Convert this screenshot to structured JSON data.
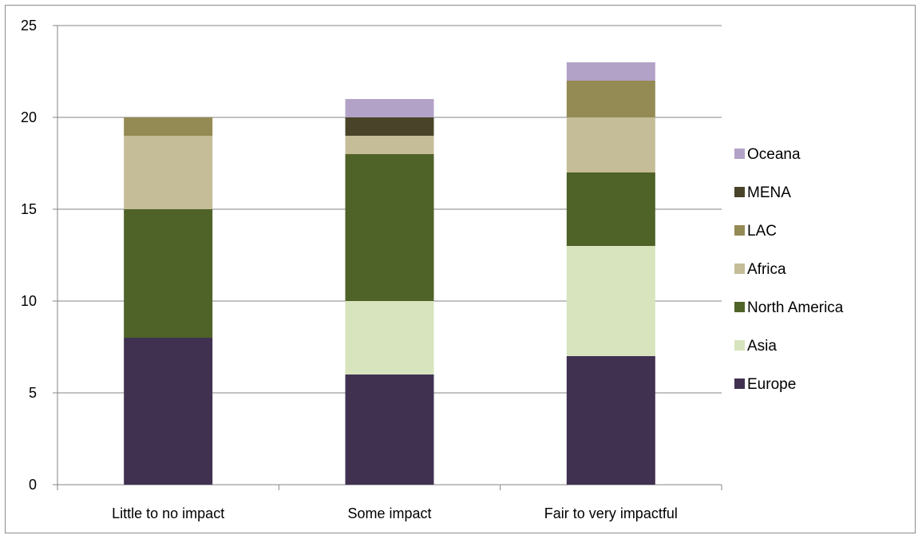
{
  "chart_data": {
    "type": "bar",
    "stacked": true,
    "title": "",
    "xlabel": "",
    "ylabel": "",
    "categories": [
      "Little to no impact",
      "Some impact",
      "Fair to very impactful"
    ],
    "ylim": [
      0,
      25
    ],
    "yticks": [
      0,
      5,
      10,
      15,
      20,
      25
    ],
    "grid": true,
    "legend_position": "right",
    "series": [
      {
        "name": "Europe",
        "color": "#403151",
        "values": [
          8,
          6,
          7
        ]
      },
      {
        "name": "Asia",
        "color": "#d7e4bd",
        "values": [
          0,
          4,
          6
        ]
      },
      {
        "name": "North America",
        "color": "#4f6228",
        "values": [
          7,
          8,
          4
        ]
      },
      {
        "name": "Africa",
        "color": "#c4bd97",
        "values": [
          4,
          1,
          3
        ]
      },
      {
        "name": "LAC",
        "color": "#948a54",
        "values": [
          1,
          0,
          2
        ]
      },
      {
        "name": "MENA",
        "color": "#494429",
        "values": [
          0,
          1,
          0
        ]
      },
      {
        "name": "Oceana",
        "color": "#b3a2c7",
        "values": [
          0,
          1,
          1
        ]
      }
    ]
  }
}
